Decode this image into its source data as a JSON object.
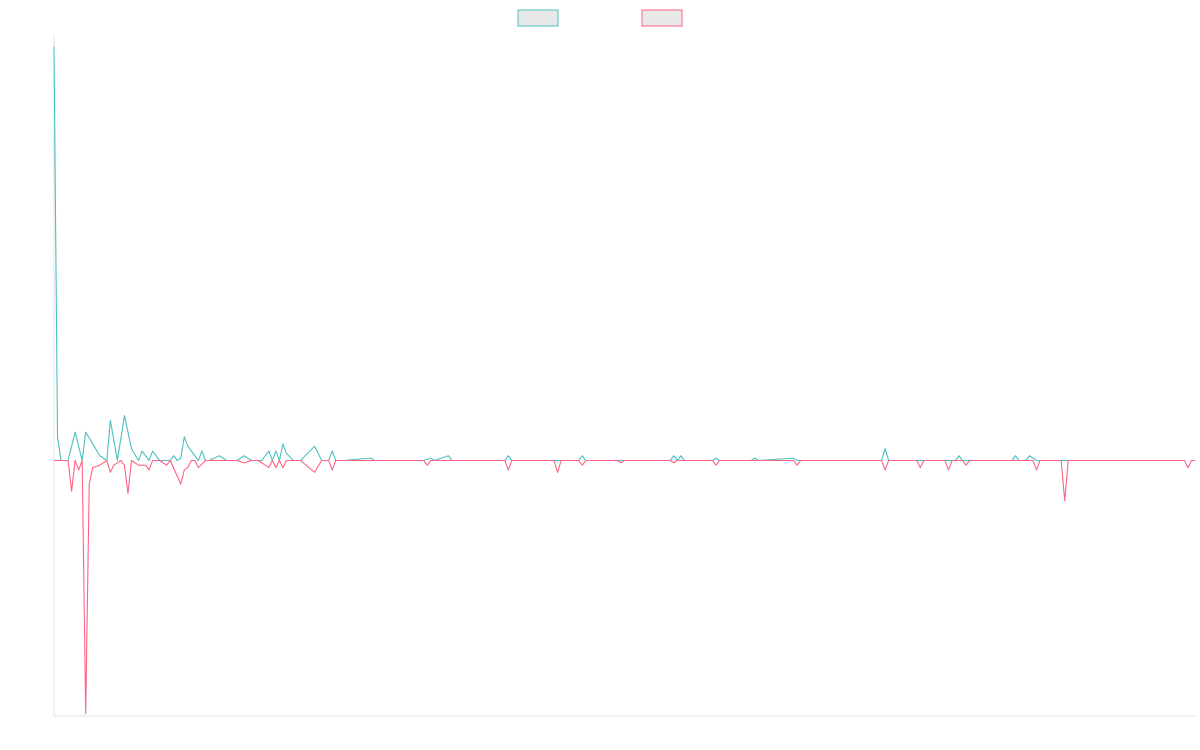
{
  "chart_data": {
    "type": "line",
    "title": "",
    "xlabel": "",
    "ylabel": "",
    "grid": false,
    "legend": {
      "position": "top-center",
      "entries": [
        "",
        ""
      ]
    },
    "ylim": [
      -1.08,
      1.79
    ],
    "xlim": [
      0,
      324
    ],
    "series": [
      {
        "name": "",
        "color": "#4bc0c0",
        "fill": "#e8e8e8",
        "points": [
          [
            0,
            1.75
          ],
          [
            1,
            0.1
          ],
          [
            2,
            0
          ],
          [
            4,
            0
          ],
          [
            6,
            0.12
          ],
          [
            8,
            0
          ],
          [
            9,
            0.12
          ],
          [
            11,
            0.07
          ],
          [
            13,
            0.02
          ],
          [
            15,
            0
          ],
          [
            16,
            0.17
          ],
          [
            18,
            0
          ],
          [
            20,
            0.19
          ],
          [
            22,
            0.05
          ],
          [
            24,
            0
          ],
          [
            25,
            0.04
          ],
          [
            27,
            0
          ],
          [
            28,
            0.04
          ],
          [
            30,
            0
          ],
          [
            33,
            0
          ],
          [
            34,
            0.02
          ],
          [
            35,
            0
          ],
          [
            36,
            0.01
          ],
          [
            37,
            0.1
          ],
          [
            38,
            0.06
          ],
          [
            40,
            0.02
          ],
          [
            41,
            0
          ],
          [
            42,
            0.04
          ],
          [
            43,
            0
          ],
          [
            44,
            0
          ],
          [
            47,
            0.02
          ],
          [
            49,
            0
          ],
          [
            52,
            0
          ],
          [
            54,
            0.02
          ],
          [
            56,
            0
          ],
          [
            59,
            0
          ],
          [
            61,
            0.04
          ],
          [
            62,
            0
          ],
          [
            63,
            0.04
          ],
          [
            64,
            0
          ],
          [
            65,
            0.07
          ],
          [
            66,
            0.03
          ],
          [
            68,
            0
          ],
          [
            70,
            0
          ],
          [
            74,
            0.06
          ],
          [
            76,
            0
          ],
          [
            78,
            0
          ],
          [
            79,
            0.04
          ],
          [
            80,
            0
          ],
          [
            82,
            0
          ],
          [
            90,
            0.01
          ],
          [
            91,
            0
          ],
          [
            105,
            0
          ],
          [
            107,
            0.01
          ],
          [
            108,
            0
          ],
          [
            112,
            0.02
          ],
          [
            113,
            0
          ],
          [
            128,
            0
          ],
          [
            129,
            0.02
          ],
          [
            130,
            0
          ],
          [
            143,
            0
          ],
          [
            144,
            0
          ],
          [
            149,
            0
          ],
          [
            150,
            0.02
          ],
          [
            151,
            0
          ],
          [
            175,
            0
          ],
          [
            176,
            0.02
          ],
          [
            177,
            0
          ],
          [
            177,
            0
          ],
          [
            178,
            0.02
          ],
          [
            179,
            0
          ],
          [
            187,
            0
          ],
          [
            188,
            0.01
          ],
          [
            189,
            0
          ],
          [
            198,
            0
          ],
          [
            199,
            0.01
          ],
          [
            200,
            0
          ],
          [
            210,
            0.01
          ],
          [
            211,
            0
          ],
          [
            235,
            0
          ],
          [
            236,
            0.05
          ],
          [
            237,
            0
          ],
          [
            238,
            0
          ],
          [
            240,
            0
          ],
          [
            245,
            0
          ],
          [
            246,
            0
          ],
          [
            250,
            0
          ],
          [
            251,
            0
          ],
          [
            255,
            0
          ],
          [
            256,
            0
          ],
          [
            260,
            0
          ],
          [
            261,
            0
          ],
          [
            266,
            0
          ],
          [
            268,
            0
          ],
          [
            269,
            0
          ],
          [
            270,
            0
          ],
          [
            283,
            0
          ],
          [
            284,
            0
          ],
          [
            291,
            0
          ],
          [
            257,
            0.02
          ],
          [
            258,
            0
          ],
          [
            272,
            0
          ],
          [
            273,
            0.02
          ],
          [
            274,
            0
          ],
          [
            276,
            0
          ],
          [
            277,
            0.02
          ],
          [
            279,
            0
          ],
          [
            286,
            0
          ],
          [
            291,
            0
          ]
        ]
      },
      {
        "name": "",
        "color": "#ff6384",
        "fill": "#e8e8e8",
        "points": [
          [
            0,
            0
          ],
          [
            4,
            0
          ],
          [
            5,
            -0.13
          ],
          [
            6,
            0
          ],
          [
            7,
            -0.04
          ],
          [
            8,
            0
          ],
          [
            9,
            -1.07
          ],
          [
            10,
            -0.1
          ],
          [
            11,
            -0.03
          ],
          [
            13,
            -0.02
          ],
          [
            15,
            0
          ],
          [
            16,
            -0.05
          ],
          [
            17,
            -0.02
          ],
          [
            19,
            0
          ],
          [
            20,
            -0.02
          ],
          [
            21,
            -0.14
          ],
          [
            22,
            0
          ],
          [
            24,
            -0.02
          ],
          [
            26,
            -0.02
          ],
          [
            27,
            -0.04
          ],
          [
            28,
            0
          ],
          [
            30,
            0
          ],
          [
            32,
            -0.02
          ],
          [
            33,
            0
          ],
          [
            36,
            -0.1
          ],
          [
            37,
            -0.04
          ],
          [
            38,
            -0.03
          ],
          [
            39,
            0
          ],
          [
            40,
            0
          ],
          [
            41,
            -0.03
          ],
          [
            43,
            0
          ],
          [
            52,
            0
          ],
          [
            54,
            -0.01
          ],
          [
            56,
            0
          ],
          [
            58,
            0
          ],
          [
            59,
            -0.01
          ],
          [
            61,
            -0.03
          ],
          [
            62,
            0
          ],
          [
            63,
            -0.03
          ],
          [
            64,
            0
          ],
          [
            65,
            -0.03
          ],
          [
            66,
            0
          ],
          [
            68,
            0
          ],
          [
            70,
            0
          ],
          [
            74,
            -0.05
          ],
          [
            76,
            0
          ],
          [
            78,
            0
          ],
          [
            79,
            -0.04
          ],
          [
            80,
            0
          ],
          [
            82,
            0
          ],
          [
            105,
            0
          ],
          [
            106,
            -0.02
          ],
          [
            107,
            0
          ],
          [
            128,
            0
          ],
          [
            129,
            -0.04
          ],
          [
            130,
            0
          ],
          [
            142,
            0
          ],
          [
            143,
            -0.05
          ],
          [
            144,
            0
          ],
          [
            149,
            0
          ],
          [
            150,
            -0.02
          ],
          [
            151,
            0
          ],
          [
            160,
            0
          ],
          [
            161,
            -0.01
          ],
          [
            162,
            0
          ],
          [
            175,
            0
          ],
          [
            176,
            -0.01
          ],
          [
            177,
            0
          ],
          [
            187,
            0
          ],
          [
            188,
            -0.02
          ],
          [
            189,
            0
          ],
          [
            210,
            0
          ],
          [
            211,
            -0.02
          ],
          [
            212,
            0
          ],
          [
            235,
            0
          ],
          [
            236,
            -0.04
          ],
          [
            237,
            0
          ],
          [
            245,
            0
          ],
          [
            246,
            -0.03
          ],
          [
            247,
            0
          ],
          [
            253,
            0
          ],
          [
            254,
            -0.04
          ],
          [
            255,
            0
          ],
          [
            258,
            0
          ],
          [
            259,
            -0.02
          ],
          [
            260,
            0
          ],
          [
            278,
            0
          ],
          [
            279,
            -0.04
          ],
          [
            280,
            0
          ],
          [
            286,
            0
          ],
          [
            287,
            -0.17
          ],
          [
            288,
            0
          ],
          [
            290,
            0
          ],
          [
            321,
            0
          ],
          [
            322,
            -0.03
          ],
          [
            323,
            0
          ],
          [
            324,
            0
          ]
        ]
      }
    ]
  }
}
